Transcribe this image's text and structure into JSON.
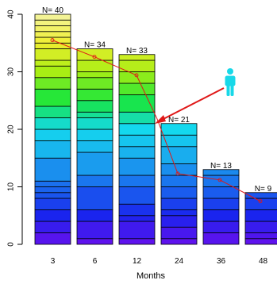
{
  "chart_data": {
    "type": "bar",
    "xlabel": "Months",
    "ylabel": "",
    "ylim": [
      0,
      40
    ],
    "yticks": [
      0,
      10,
      20,
      30,
      40
    ],
    "categories": [
      "3",
      "6",
      "12",
      "24",
      "36",
      "48"
    ],
    "values": [
      40,
      34,
      33,
      21,
      13,
      9
    ],
    "bar_labels": [
      "N= 40",
      "N= 34",
      "N= 33",
      "N= 21",
      "N= 13",
      "N= 9"
    ],
    "segment_boundaries": [
      [
        2,
        4,
        6,
        8,
        9,
        10,
        11,
        15,
        18,
        20,
        22,
        24,
        27,
        29,
        31,
        32,
        34,
        35,
        36,
        37,
        38,
        39,
        40
      ],
      [
        1,
        4,
        6,
        10,
        12,
        16,
        18,
        20,
        22,
        23,
        25,
        27,
        29,
        30,
        32,
        34
      ],
      [
        1,
        4,
        5,
        7,
        10,
        12,
        15,
        17,
        19,
        21,
        23,
        26,
        28,
        30,
        32,
        33
      ],
      [
        1,
        3,
        5,
        6,
        8,
        10,
        12,
        14,
        17,
        19,
        21
      ],
      [
        2,
        4,
        6,
        8,
        10,
        12,
        13
      ],
      [
        1,
        2,
        4,
        6,
        8,
        9
      ]
    ],
    "gradient_colors": [
      "#6610ee",
      "#1a24ee",
      "#1a6aee",
      "#1aa8ee",
      "#14d8ee",
      "#18e63c",
      "#a8ee14",
      "#eeee30",
      "#f4f4a0"
    ],
    "line_series": {
      "values": [
        35.5,
        32.6,
        29.4,
        21.8,
        12.3,
        11.2,
        7.5
      ],
      "color": "#e01818"
    },
    "annotation": {
      "icon": "person-icon",
      "icon_color": "#18d8e8",
      "arrow_color": "#e01818"
    }
  }
}
